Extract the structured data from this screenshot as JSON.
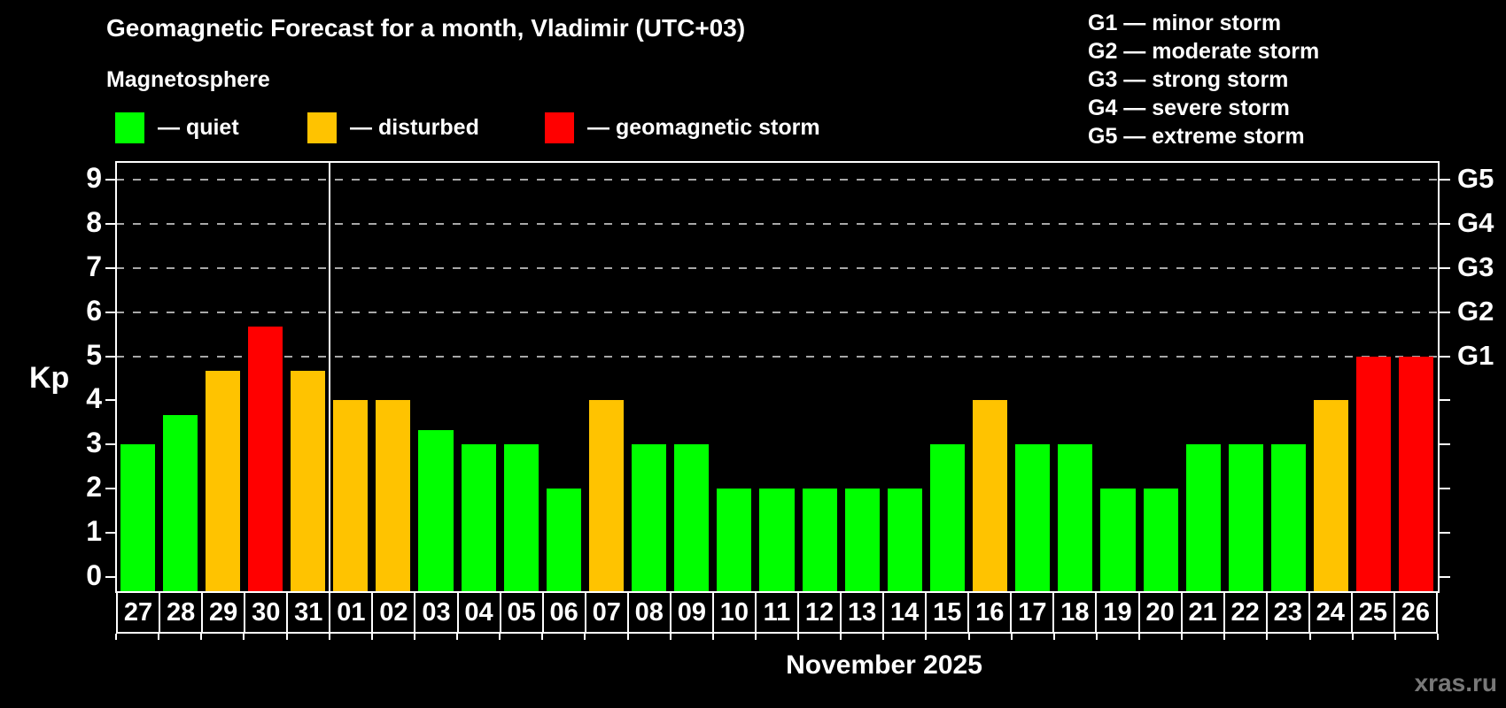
{
  "title": "Geomagnetic Forecast for a month, Vladimir (UTC+03)",
  "subtitle": "Magnetosphere",
  "legend": {
    "items": [
      {
        "key": "quiet",
        "label": "— quiet"
      },
      {
        "key": "disturbed",
        "label": "— disturbed"
      },
      {
        "key": "storm",
        "label": "— geomagnetic storm"
      }
    ]
  },
  "storm_scale": [
    "G1 — minor storm",
    "G2 — moderate storm",
    "G3 — strong storm",
    "G4 — severe storm",
    "G5 — extreme storm"
  ],
  "colors": {
    "quiet": "#00ff00",
    "disturbed": "#ffc300",
    "storm": "#ff0000",
    "grid": "#a8a8a8",
    "frame": "#ffffff",
    "watermark": "#787878",
    "background": "#000000"
  },
  "axis": {
    "y_label": "Kp",
    "y_ticks": [
      "0",
      "1",
      "2",
      "3",
      "4",
      "5",
      "6",
      "7",
      "8",
      "9"
    ]
  },
  "x_label": "November 2025",
  "watermark": "xras.ru",
  "chart_data": {
    "type": "bar",
    "title": "Geomagnetic Forecast for a month, Vladimir (UTC+03)",
    "ylabel": "Kp",
    "xlabel": "November 2025",
    "ylim": [
      -0.35,
      9.4
    ],
    "grid": "dashed horizontal at Kp 5-9 only",
    "categories": [
      "27",
      "28",
      "29",
      "30",
      "31",
      "01",
      "02",
      "03",
      "04",
      "05",
      "06",
      "07",
      "08",
      "09",
      "10",
      "11",
      "12",
      "13",
      "14",
      "15",
      "16",
      "17",
      "18",
      "19",
      "20",
      "21",
      "22",
      "23",
      "24",
      "25",
      "26"
    ],
    "values": [
      3,
      3.67,
      4.67,
      5.67,
      4.67,
      4,
      4,
      3.33,
      3,
      3,
      2,
      4,
      3,
      3,
      2,
      2,
      2,
      2,
      2,
      3,
      4,
      3,
      3,
      2,
      2,
      3,
      3,
      3,
      4,
      5,
      5
    ],
    "statuses": [
      "quiet",
      "quiet",
      "disturbed",
      "storm",
      "disturbed",
      "disturbed",
      "disturbed",
      "quiet",
      "quiet",
      "quiet",
      "quiet",
      "disturbed",
      "quiet",
      "quiet",
      "quiet",
      "quiet",
      "quiet",
      "quiet",
      "quiet",
      "quiet",
      "disturbed",
      "quiet",
      "quiet",
      "quiet",
      "quiet",
      "quiet",
      "quiet",
      "quiet",
      "disturbed",
      "storm",
      "storm"
    ],
    "g_levels": [
      {
        "kp": 5,
        "label": "G1"
      },
      {
        "kp": 6,
        "label": "G2"
      },
      {
        "kp": 7,
        "label": "G3"
      },
      {
        "kp": 8,
        "label": "G4"
      },
      {
        "kp": 9,
        "label": "G5"
      }
    ],
    "separator_after_category": "31"
  }
}
